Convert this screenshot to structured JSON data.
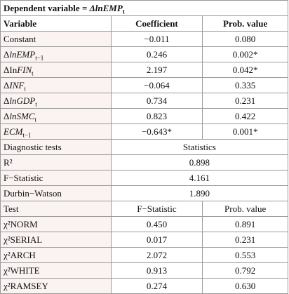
{
  "header": {
    "title": "Dependent variable = ",
    "title_var": "ΔlnEMP",
    "title_sub": "t"
  },
  "table": {
    "columns": [
      "Variable",
      "Coefficient",
      "Prob. value"
    ],
    "rows": [
      {
        "pre": "Constant",
        "coef": "−0.011",
        "prob": "0.080"
      },
      {
        "pre": "Δ",
        "it": "lnEMP",
        "sub": "t−1",
        "coef": "0.246",
        "prob": "0.002*"
      },
      {
        "pre": "ΔIn",
        "it": "FIN",
        "sub": "t",
        "coef": "2.197",
        "prob": "0.042*"
      },
      {
        "pre": "Δ",
        "it": "INF",
        "sub": "t",
        "coef": "−0.064",
        "prob": "0.335"
      },
      {
        "pre": "Δ",
        "it": "lnGDP",
        "sub": "t",
        "coef": "0.734",
        "prob": "0.231"
      },
      {
        "pre": "Δ",
        "it": "lnSMC",
        "sub": "t",
        "coef": "0.823",
        "prob": "0.422"
      },
      {
        "it": "ECM",
        "sub": "t−1",
        "coef": "−0.643*",
        "prob": "0.001*"
      }
    ]
  },
  "diagnostics": {
    "label": "Diagnostic tests",
    "stat_header": "Statistics",
    "rows": [
      {
        "name": "R²",
        "value": "0.898"
      },
      {
        "name": "F−Statistic",
        "value": "4.161"
      },
      {
        "name": "Durbin−Watson",
        "value": "1.890"
      }
    ]
  },
  "tests": {
    "columns": [
      "Test",
      "F−Statistic",
      "Prob. value"
    ],
    "rows": [
      {
        "name": "χ²NORM",
        "stat": "0.450",
        "prob": "0.891"
      },
      {
        "name": "χ²SERIAL",
        "stat": "0.017",
        "prob": "0.231"
      },
      {
        "name": "χ²ARCH",
        "stat": "2.072",
        "prob": "0.553"
      },
      {
        "name": "χ²WHITE",
        "stat": "0.913",
        "prob": "0.792"
      },
      {
        "name": "χ²RAMSEY",
        "stat": "0.274",
        "prob": "0.630"
      }
    ]
  }
}
